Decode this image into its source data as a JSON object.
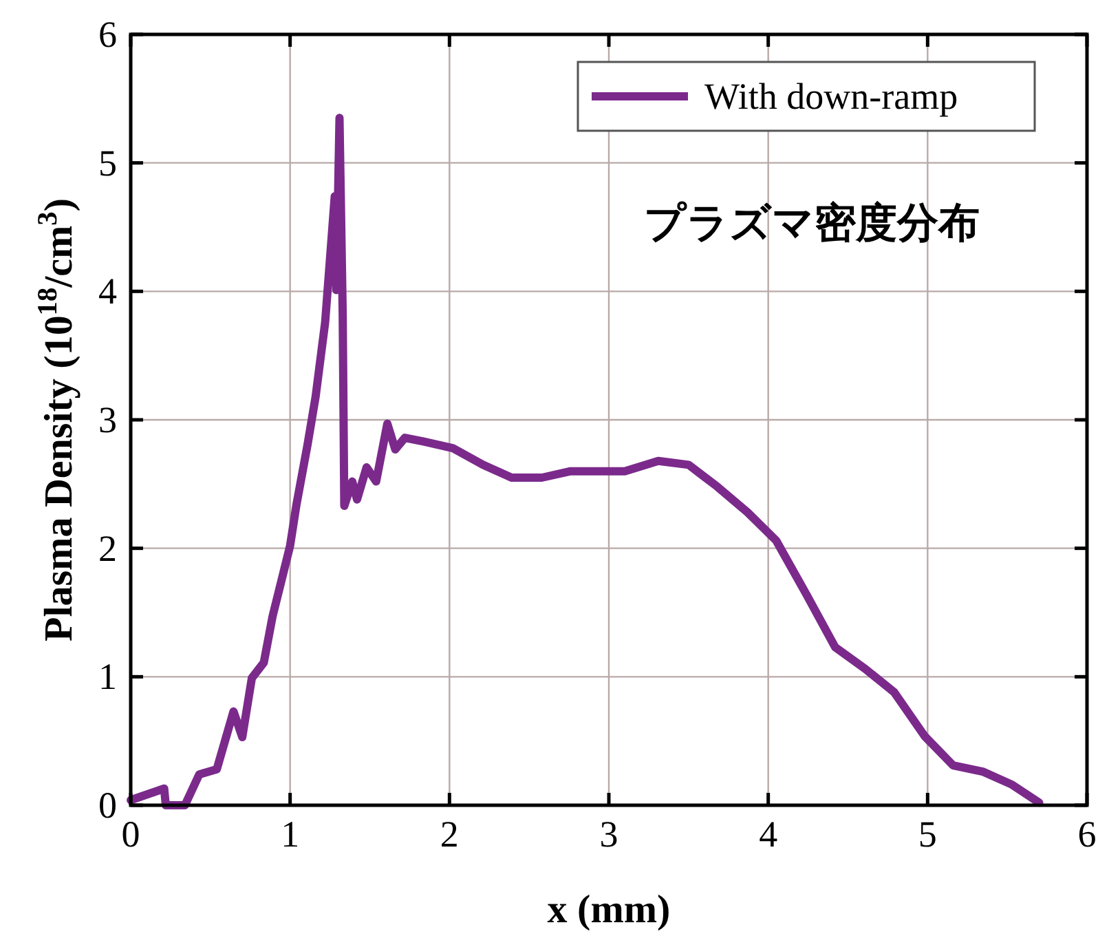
{
  "chart_data": {
    "type": "line",
    "xlabel": "x (mm)",
    "ylabel": "Plasma Density (10$^{18}$/cm$^{3}$)",
    "xlim": [
      0,
      6
    ],
    "ylim": [
      0,
      6
    ],
    "xticks": [
      0,
      1,
      2,
      3,
      4,
      5,
      6
    ],
    "yticks": [
      0,
      1,
      2,
      3,
      4,
      5,
      6
    ],
    "grid": true,
    "legend": "top right",
    "line_style": "solid",
    "annotations": [
      "プラズマ密度分布"
    ],
    "series": [
      {
        "name": "With down-ramp",
        "color": "#7b2a8b",
        "x": [
          0,
          0.21,
          0.22,
          0.28,
          0.34,
          0.43,
          0.54,
          0.645,
          0.7,
          0.76,
          0.835,
          0.89,
          1.0,
          1.04,
          1.11,
          1.16,
          1.22,
          1.26,
          1.28,
          1.29,
          1.31,
          1.33,
          1.34,
          1.39,
          1.42,
          1.48,
          1.54,
          1.61,
          1.66,
          1.72,
          1.84,
          2.02,
          2.21,
          2.39,
          2.58,
          2.76,
          3.1,
          3.31,
          3.5,
          3.68,
          3.87,
          4.05,
          4.24,
          4.42,
          4.61,
          4.79,
          4.98,
          5.16,
          5.35,
          5.53,
          5.7
        ],
        "values": [
          0.04,
          0.13,
          0,
          0,
          0,
          0.24,
          0.28,
          0.73,
          0.53,
          0.99,
          1.11,
          1.47,
          2.02,
          2.34,
          2.81,
          3.18,
          3.76,
          4.41,
          4.74,
          4.01,
          5.35,
          3.83,
          2.33,
          2.52,
          2.38,
          2.63,
          2.52,
          2.97,
          2.77,
          2.86,
          2.83,
          2.78,
          2.65,
          2.55,
          2.55,
          2.6,
          2.6,
          2.68,
          2.65,
          2.48,
          2.28,
          2.06,
          1.64,
          1.23,
          1.06,
          0.88,
          0.54,
          0.31,
          0.26,
          0.16,
          0.02
        ]
      }
    ]
  }
}
